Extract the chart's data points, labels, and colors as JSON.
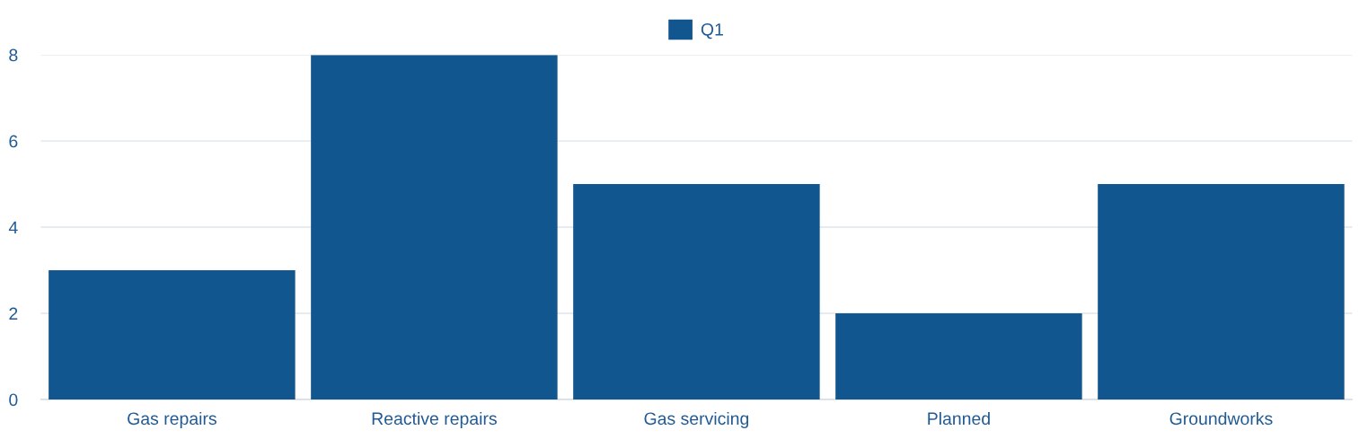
{
  "chart_data": {
    "type": "bar",
    "categories": [
      "Gas repairs",
      "Reactive repairs",
      "Gas servicing",
      "Planned",
      "Groundworks"
    ],
    "series": [
      {
        "name": "Q1",
        "color": "#12568f",
        "values": [
          3,
          8,
          5,
          2,
          5
        ]
      }
    ],
    "ylim": [
      0,
      8
    ],
    "yticks": [
      0,
      2,
      4,
      6,
      8
    ],
    "grid": "y",
    "legend": "top"
  }
}
